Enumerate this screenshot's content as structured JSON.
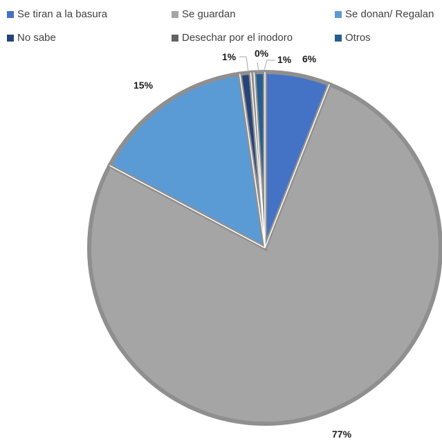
{
  "chart_data": {
    "type": "pie",
    "title": "",
    "legend_position": "top",
    "slices": [
      {
        "name": "Se tiran a la basura",
        "value": 6,
        "label": "6%",
        "color": "#4472C4"
      },
      {
        "name": "Se guardan",
        "value": 77,
        "label": "77%",
        "color": "#A5A5A5"
      },
      {
        "name": "Se donan/ Regalan",
        "value": 15,
        "label": "15%",
        "color": "#5B9BD5"
      },
      {
        "name": "No sabe",
        "value": 1,
        "label": "1%",
        "color": "#264478"
      },
      {
        "name": "Desechar por el inodoro",
        "value": 0.3,
        "label": "0%",
        "color": "#636363"
      },
      {
        "name": "Otros",
        "value": 1,
        "label": "1%",
        "color": "#255E91"
      }
    ]
  }
}
